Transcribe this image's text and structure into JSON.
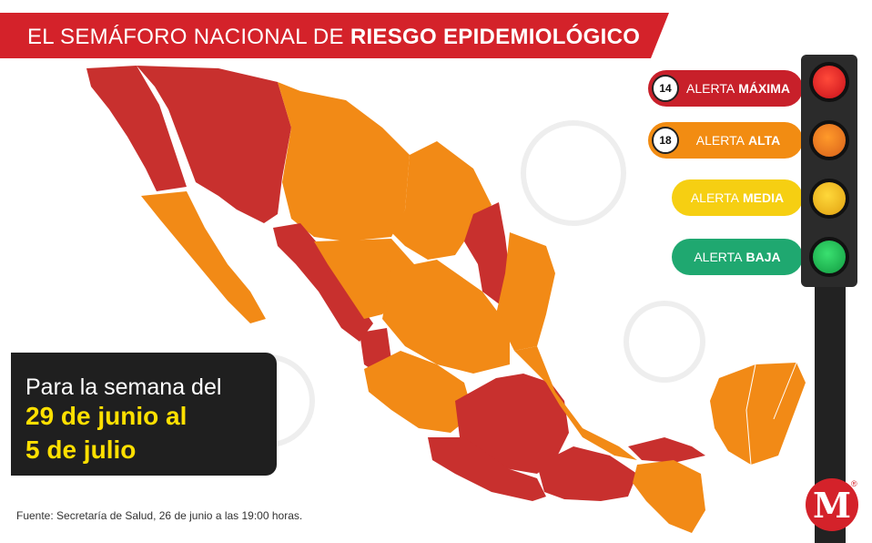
{
  "header": {
    "title_regular": "EL SEMÁFORO NACIONAL DE ",
    "title_bold": "RIESGO EPIDEMIOLÓGICO"
  },
  "legend": {
    "maxima": {
      "count": "14",
      "word": "ALERTA",
      "level": "MÁXIMA",
      "color": "#c8202a"
    },
    "alta": {
      "count": "18",
      "word": "ALERTA",
      "level": "ALTA",
      "color": "#f28c12"
    },
    "media": {
      "word": "ALERTA",
      "level": "MEDIA",
      "color": "#f6cf12"
    },
    "baja": {
      "word": "ALERTA",
      "level": "BAJA",
      "color": "#1fa870"
    }
  },
  "week": {
    "line1": "Para la semana del",
    "line2": "29 de junio al",
    "line3": "5 de julio"
  },
  "source": "Fuente: Secretaría de Salud, 26 de junio a las 19:00 horas.",
  "logo": {
    "letter": "M",
    "reg": "®"
  },
  "colors": {
    "red": "#c8302e",
    "orange": "#f28a16",
    "title_bg": "#d4222a"
  }
}
